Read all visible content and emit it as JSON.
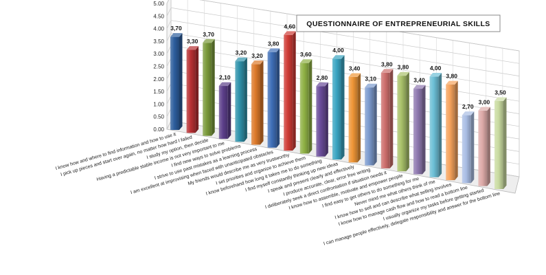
{
  "chart_data": {
    "type": "bar",
    "title": "QUESTIONNAIRE OF ENTREPRENEURIAL SKILLS",
    "xlabel": "",
    "ylabel": "",
    "ylim": [
      0,
      5
    ],
    "y_ticks": [
      "0.00",
      "0.50",
      "1.00",
      "1.50",
      "2.00",
      "2.50",
      "3.00",
      "3.50",
      "4.00",
      "4.50",
      "5.00"
    ],
    "grid": true,
    "categories": [
      "I know how and where to find information and how to use it",
      "I pick up pieces and start over again, no matter how hard I failed",
      "I study my option, then decide",
      "Having a predictable stable income is not very important to me",
      "I find new ways to solve problems",
      "I strive to use past mistakes as a learning process",
      "I am excellent at improvising when faced with unanticipated obstacles",
      "My friends would describe me as very trustworthy",
      "I set priorities and organize to achieve them",
      "I know beforehand how long it takes me to do something",
      "I find myself constantly thinking up new ideas",
      "I speak and present clearly and effectively",
      "I produce accurate, clear, error free writing",
      "I deliberately seek a direct confrontation if situation needs it",
      "I know how to assemble, motivate and empower people",
      "I find easy to get others to do something for me",
      "Never mind me what others think of me",
      "I know how to sell and can describe what selling involves",
      "I know how to manage cash flow and how to read a bottom line",
      "I usually organize my tasks before getting started",
      "I can manage people effectively, delegate responsibility and answer for the bottom line"
    ],
    "values": [
      3.7,
      3.3,
      3.7,
      2.1,
      3.2,
      3.2,
      3.8,
      4.6,
      3.6,
      2.8,
      4.0,
      3.4,
      3.1,
      3.8,
      3.8,
      3.4,
      4.0,
      3.8,
      2.7,
      3.0,
      3.5
    ],
    "value_labels": [
      "3,70",
      "3,30",
      "3,70",
      "2,10",
      "3,20",
      "3,20",
      "3,80",
      "4,60",
      "3,60",
      "2,80",
      "4,00",
      "3,40",
      "3,10",
      "3,80",
      "3,80",
      "3,40",
      "4,00",
      "3,80",
      "2,70",
      "3,00",
      "3,50"
    ],
    "colors": [
      "#2c5d9c",
      "#b83033",
      "#7a9a3a",
      "#5c3f8a",
      "#2f93ab",
      "#dd7a2a",
      "#3f6fb8",
      "#cf3b35",
      "#8fb145",
      "#6a4c9a",
      "#3aa5c2",
      "#ef9637",
      "#7c9bcf",
      "#cd6e6c",
      "#a9c26a",
      "#8f79b0",
      "#6cbfd6",
      "#f6a35c",
      "#a9bde4",
      "#ddaaa8",
      "#c9dba0"
    ],
    "legend": "none"
  }
}
